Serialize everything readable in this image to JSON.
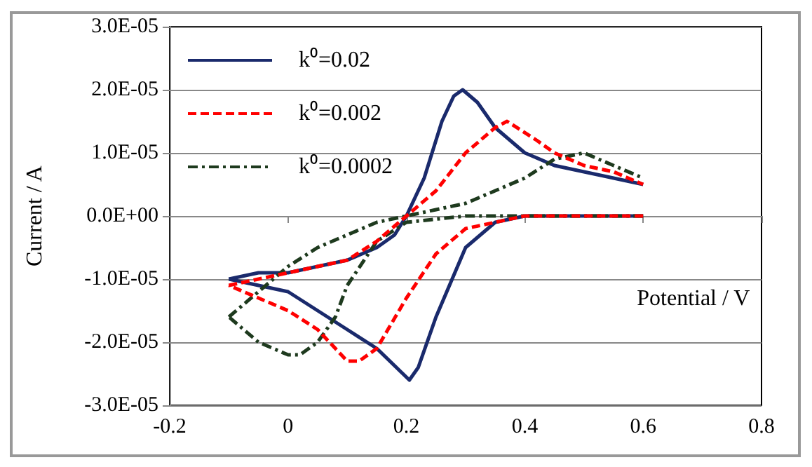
{
  "chart_data": {
    "type": "line",
    "xlabel": "Potential / V",
    "ylabel": "Current / A",
    "xlim": [
      -0.2,
      0.8
    ],
    "xticks": [
      -0.2,
      0,
      0.2,
      0.4,
      0.6,
      0.8
    ],
    "ylim": [
      -3e-05,
      3e-05
    ],
    "yticks": [
      {
        "value": -3e-05,
        "label": "-3.0E-05"
      },
      {
        "value": -2e-05,
        "label": "-2.0E-05"
      },
      {
        "value": -1e-05,
        "label": "-1.0E-05"
      },
      {
        "value": 0,
        "label": "0.0E+00"
      },
      {
        "value": 1e-05,
        "label": "1.0E-05"
      },
      {
        "value": 2e-05,
        "label": "2.0E-05"
      },
      {
        "value": 3e-05,
        "label": "3.0E-05"
      }
    ],
    "grid": "y",
    "legend": "top left",
    "marker": "none",
    "series": [
      {
        "name": "k⁰=0.02",
        "color": "#1a2a6c",
        "line_style": "solid",
        "x": [
          -0.1,
          -0.05,
          0,
          0.05,
          0.1,
          0.15,
          0.18,
          0.2,
          0.23,
          0.26,
          0.28,
          0.295,
          0.32,
          0.35,
          0.4,
          0.45,
          0.5,
          0.55,
          0.6
        ],
        "values": [
          -1e-05,
          -9e-06,
          -9e-06,
          -8e-06,
          -7e-06,
          -5e-06,
          -3e-06,
          0,
          6e-06,
          1.5e-05,
          1.9e-05,
          2e-05,
          1.8e-05,
          1.4e-05,
          1e-05,
          8e-06,
          7e-06,
          6e-06,
          5e-06
        ]
      },
      {
        "color": "#1a2a6c",
        "line_style": "solid",
        "x": [
          0.6,
          0.5,
          0.4,
          0.35,
          0.3,
          0.25,
          0.22,
          0.205,
          0.15,
          0.1,
          0.05,
          0,
          -0.05,
          -0.1
        ],
        "values": [
          0,
          0,
          0,
          -1e-06,
          -5e-06,
          -1.6e-05,
          -2.4e-05,
          -2.6e-05,
          -2.1e-05,
          -1.8e-05,
          -1.5e-05,
          -1.2e-05,
          -1.1e-05,
          -1e-05
        ]
      },
      {
        "name": "k⁰=0.002",
        "color": "#ff0000",
        "line_style": "dashed",
        "x": [
          -0.1,
          -0.05,
          0,
          0.05,
          0.1,
          0.15,
          0.2,
          0.25,
          0.3,
          0.35,
          0.37,
          0.42,
          0.45,
          0.5,
          0.55,
          0.6
        ],
        "values": [
          -1.1e-05,
          -1e-05,
          -9e-06,
          -8e-06,
          -7e-06,
          -4e-06,
          0,
          4e-06,
          1e-05,
          1.4e-05,
          1.5e-05,
          1.2e-05,
          1e-05,
          8e-06,
          7e-06,
          5e-06
        ]
      },
      {
        "color": "#ff0000",
        "line_style": "dashed",
        "x": [
          0.6,
          0.5,
          0.4,
          0.35,
          0.3,
          0.25,
          0.2,
          0.15,
          0.12,
          0.1,
          0.05,
          0,
          -0.05,
          -0.1
        ],
        "values": [
          0,
          0,
          0,
          -1e-06,
          -2e-06,
          -6e-06,
          -1.3e-05,
          -2.1e-05,
          -2.3e-05,
          -2.3e-05,
          -1.8e-05,
          -1.5e-05,
          -1.3e-05,
          -1.1e-05
        ]
      },
      {
        "name": "k⁰=0.0002",
        "color": "#1e3a1e",
        "line_style": "dashdot",
        "x": [
          -0.1,
          -0.05,
          0,
          0.05,
          0.1,
          0.15,
          0.2,
          0.25,
          0.3,
          0.35,
          0.4,
          0.45,
          0.5,
          0.55,
          0.6
        ],
        "values": [
          -1.6e-05,
          -1.2e-05,
          -8e-06,
          -5e-06,
          -3e-06,
          -1e-06,
          0,
          1e-06,
          2e-06,
          4e-06,
          6e-06,
          9e-06,
          1e-05,
          8e-06,
          6e-06
        ]
      },
      {
        "color": "#1e3a1e",
        "line_style": "dashdot",
        "x": [
          0.6,
          0.5,
          0.4,
          0.3,
          0.2,
          0.15,
          0.1,
          0.08,
          0.05,
          0.02,
          0,
          -0.05,
          -0.1
        ],
        "values": [
          0,
          0,
          0,
          0,
          -1e-06,
          -4e-06,
          -1.1e-05,
          -1.6e-05,
          -2e-05,
          -2.2e-05,
          -2.2e-05,
          -2e-05,
          -1.6e-05
        ]
      }
    ]
  }
}
